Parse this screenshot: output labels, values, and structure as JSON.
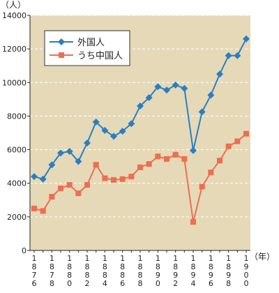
{
  "chart_data": {
    "type": "line",
    "y_unit_label": "（人）",
    "x_unit_label": "（年）",
    "grid": true,
    "legend_position": "top-left",
    "ylim": [
      0,
      14000
    ],
    "yticks": [
      0,
      2000,
      4000,
      6000,
      8000,
      10000,
      12000,
      14000
    ],
    "x": [
      1876,
      1877,
      1878,
      1879,
      1880,
      1881,
      1882,
      1883,
      1884,
      1885,
      1886,
      1887,
      1888,
      1889,
      1890,
      1891,
      1892,
      1893,
      1894,
      1895,
      1896,
      1897,
      1898,
      1899,
      1900
    ],
    "xtick_labels": [
      "1876",
      "1878",
      "1880",
      "1882",
      "1884",
      "1886",
      "1888",
      "1890",
      "1892",
      "1894",
      "1896",
      "1898",
      "1900"
    ],
    "series": [
      {
        "name": "外国人",
        "color": "#2a7fc0",
        "marker": "diamond",
        "values": [
          4400,
          4250,
          5100,
          5800,
          5900,
          5300,
          6400,
          7650,
          7150,
          6800,
          7100,
          7550,
          8600,
          9100,
          9750,
          9550,
          9850,
          9650,
          5950,
          8250,
          9250,
          10500,
          11600,
          11600,
          12600
        ]
      },
      {
        "name": "うち中国人",
        "color": "#ee6e50",
        "marker": "square",
        "values": [
          2500,
          2350,
          3200,
          3700,
          3900,
          3400,
          3900,
          5100,
          4300,
          4200,
          4250,
          4400,
          4950,
          5150,
          5600,
          5450,
          5700,
          5450,
          1700,
          3800,
          4650,
          5350,
          6200,
          6500,
          6950
        ]
      }
    ]
  }
}
